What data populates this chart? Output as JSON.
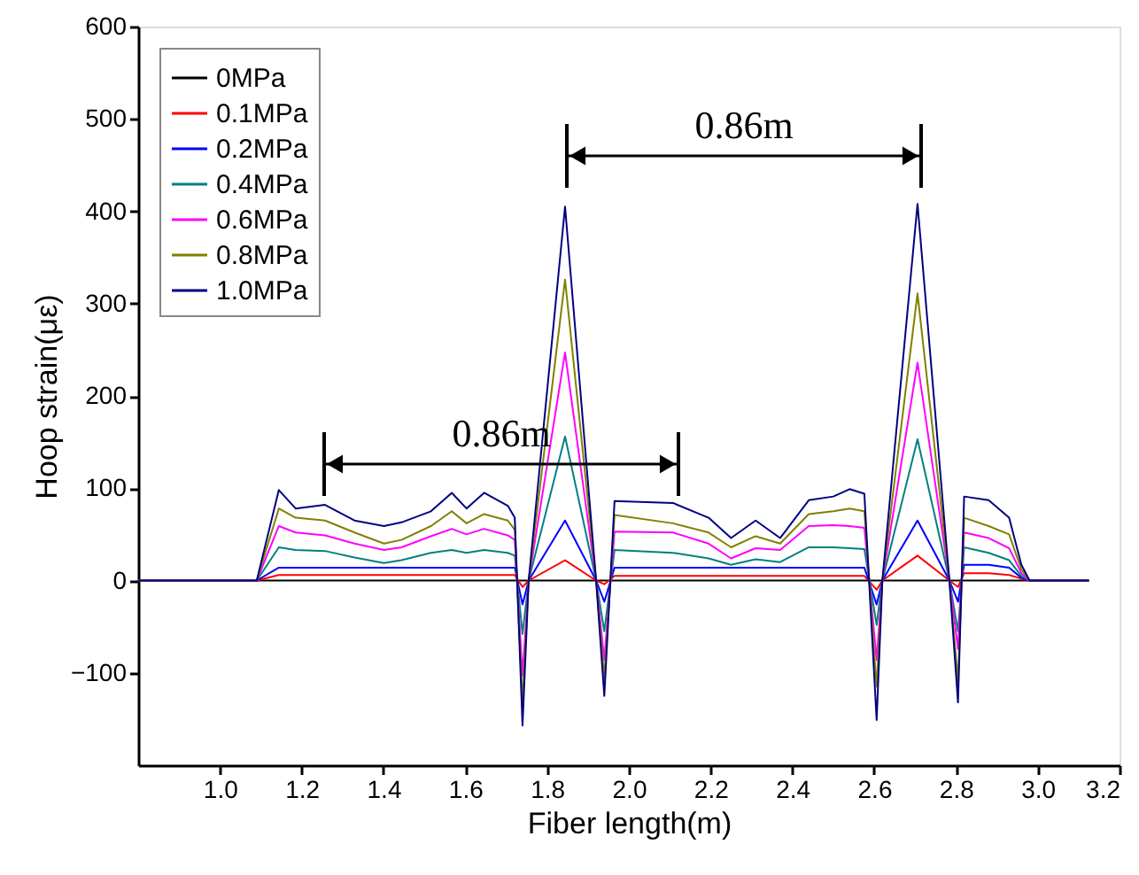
{
  "chart_data": {
    "type": "line",
    "xlabel": "Fiber length(m)",
    "ylabel": "Hoop strain(με)",
    "x": [
      0.8,
      1.0,
      1.09,
      1.144,
      1.185,
      1.257,
      1.329,
      1.401,
      1.444,
      1.516,
      1.567,
      1.603,
      1.646,
      1.704,
      1.721,
      1.74,
      1.755,
      1.844,
      1.92,
      1.94,
      1.965,
      2.108,
      2.195,
      2.25,
      2.31,
      2.37,
      2.44,
      2.5,
      2.54,
      2.576,
      2.606,
      2.62,
      2.706,
      2.784,
      2.805,
      2.82,
      2.88,
      2.93,
      2.96,
      2.98,
      3.125
    ],
    "series": [
      {
        "name": "0MPa",
        "color": "#000000",
        "values": [
          0,
          0,
          0,
          0,
          0,
          0,
          0,
          0,
          0,
          0,
          0,
          0,
          0,
          0,
          0,
          0,
          0,
          0,
          0,
          0,
          0,
          0,
          0,
          0,
          0,
          0,
          0,
          0,
          0,
          0,
          0,
          0,
          0,
          0,
          0,
          0,
          0,
          0,
          0,
          0,
          0
        ]
      },
      {
        "name": "0.1MPa",
        "color": "#ff0000",
        "values": [
          0,
          0,
          0,
          6,
          6,
          6,
          6,
          6,
          6,
          6,
          6,
          6,
          6,
          6,
          6,
          -7,
          0,
          22,
          0,
          -4,
          5,
          5,
          5,
          5,
          5,
          5,
          5,
          5,
          5,
          5,
          -10,
          0,
          27,
          0,
          -7,
          8,
          8,
          6,
          2,
          0,
          0
        ]
      },
      {
        "name": "0.2MPa",
        "color": "#0000ff",
        "values": [
          0,
          0,
          0,
          14,
          14,
          14,
          14,
          14,
          14,
          14,
          14,
          14,
          14,
          14,
          14,
          -26,
          0,
          65,
          0,
          -23,
          14,
          14,
          14,
          14,
          14,
          14,
          14,
          14,
          14,
          14,
          -26,
          0,
          65,
          0,
          -23,
          17,
          17,
          14,
          3,
          0,
          0
        ]
      },
      {
        "name": "0.4MPa",
        "color": "#008080",
        "values": [
          0,
          0,
          0,
          36,
          33,
          32,
          25,
          19,
          22,
          30,
          33,
          30,
          33,
          30,
          27,
          -58,
          0,
          156,
          0,
          -55,
          33,
          30,
          24,
          17,
          23,
          20,
          36,
          36,
          35,
          34,
          -48,
          0,
          153,
          0,
          -55,
          36,
          30,
          22,
          5,
          0,
          0
        ]
      },
      {
        "name": "0.6MPa",
        "color": "#ff00ff",
        "values": [
          0,
          0,
          0,
          59,
          52,
          49,
          40,
          33,
          36,
          48,
          56,
          50,
          56,
          49,
          44,
          -103,
          0,
          247,
          0,
          -86,
          53,
          52,
          40,
          24,
          35,
          33,
          59,
          60,
          59,
          57,
          -86,
          0,
          236,
          0,
          -74,
          52,
          46,
          35,
          8,
          0,
          0
        ]
      },
      {
        "name": "0.8MPa",
        "color": "#808000",
        "values": [
          0,
          0,
          0,
          78,
          68,
          65,
          52,
          40,
          44,
          59,
          75,
          62,
          72,
          65,
          55,
          -132,
          0,
          326,
          0,
          -106,
          71,
          62,
          52,
          36,
          48,
          40,
          72,
          75,
          78,
          75,
          -115,
          0,
          311,
          0,
          -109,
          68,
          59,
          50,
          12,
          0,
          0
        ]
      },
      {
        "name": "1.0MPa",
        "color": "#000080",
        "values": [
          0,
          0,
          0,
          98,
          78,
          82,
          65,
          59,
          63,
          75,
          95,
          78,
          95,
          81,
          68,
          -157,
          0,
          405,
          0,
          -125,
          86,
          84,
          68,
          46,
          65,
          46,
          87,
          91,
          99,
          94,
          -151,
          0,
          408,
          0,
          -132,
          91,
          87,
          68,
          17,
          0,
          0
        ]
      }
    ],
    "xlim": [
      0.8,
      3.2
    ],
    "xticks": [
      {
        "value": 1,
        "label": "1.0"
      },
      1.2,
      1.4,
      1.6,
      1.8,
      {
        "value": 2,
        "label": "2.0"
      },
      2.2,
      2.4,
      2.6,
      2.8,
      {
        "value": 3,
        "label": "3.0"
      },
      3.2
    ],
    "ylim": [
      -200,
      600
    ],
    "yticks": [
      -100,
      0,
      100,
      200,
      300,
      400,
      500,
      600
    ],
    "annotations": [
      "0.86m",
      "0.86m"
    ],
    "grid": false,
    "legend": "top left",
    "marker": "none",
    "line_style": "solid"
  }
}
